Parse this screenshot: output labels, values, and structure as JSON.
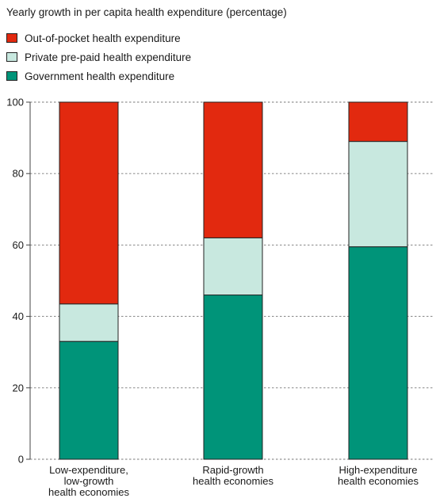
{
  "chart_data": {
    "type": "bar",
    "stacked": true,
    "title": "Yearly growth in per capita health expenditure (percentage)",
    "xlabel": "",
    "ylabel": "",
    "ylim": [
      0,
      100
    ],
    "yticks": [
      0,
      20,
      40,
      60,
      80,
      100
    ],
    "grid": true,
    "legend_position": "top-left",
    "categories": [
      [
        "Low-expenditure,",
        "low-growth",
        "health economies"
      ],
      [
        "Rapid-growth",
        "health economies"
      ],
      [
        "High-expenditure",
        "health economies"
      ]
    ],
    "series": [
      {
        "name": "Government health expenditure",
        "color": "#009479",
        "values": [
          33,
          46,
          59.5
        ]
      },
      {
        "name": "Private pre-paid health expenditure",
        "color": "#c8e8df",
        "values": [
          10.5,
          16,
          29.5
        ]
      },
      {
        "name": "Out-of-pocket health expenditure",
        "color": "#e2290f",
        "values": [
          56.5,
          38,
          11
        ]
      }
    ],
    "legend_order": [
      2,
      1,
      0
    ]
  }
}
